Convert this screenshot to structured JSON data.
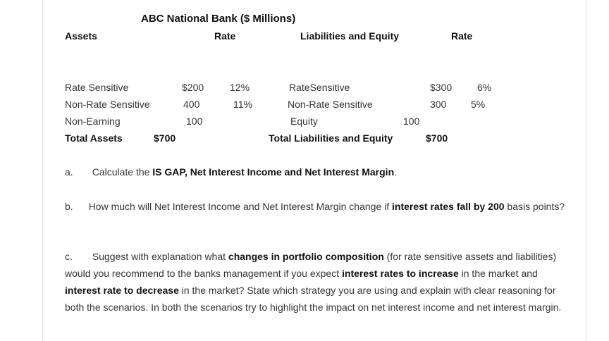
{
  "table": {
    "title": "ABC National Bank ($ Millions)",
    "headers": {
      "assets": "Assets",
      "rate_assets": "Rate",
      "liabilities": "Liabilities and Equity",
      "rate_liabilities": "Rate"
    },
    "assets": [
      {
        "label": "Rate Sensitive",
        "amount": "$200",
        "rate": "12%"
      },
      {
        "label": "Non-Rate Sensitive",
        "amount": "400",
        "rate": "11%"
      },
      {
        "label": "Non-Earning",
        "amount": "100",
        "rate": ""
      }
    ],
    "assets_total": {
      "label": "Total Assets",
      "amount": "$700"
    },
    "liabilities": [
      {
        "label": "RateSensitive",
        "amount": "$300",
        "rate": "6%"
      },
      {
        "label": "Non-Rate Sensitive",
        "amount": "300",
        "rate": "5%"
      },
      {
        "label": "Equity",
        "amount": "100",
        "rate": ""
      }
    ],
    "liabilities_total": {
      "label": "Total Liabilities and Equity",
      "amount": "$700"
    }
  },
  "questions": {
    "a": {
      "marker": "a.",
      "t1": "Calculate the ",
      "b1": "IS GAP, Net Interest Income and Net Interest Margin",
      "t2": "."
    },
    "b": {
      "marker": "b.",
      "t1": "How much will Net Interest Income and Net Interest Margin change if ",
      "b1": "interest rates fall by 200",
      "t2": " basis points?"
    },
    "c": {
      "marker": "c.",
      "t1": "Suggest with explanation what ",
      "b1": "changes in portfolio composition",
      "t2": " (for rate sensitive assets and liabilities) would you recommend to the banks management if you expect ",
      "b2": "interest rates to increase",
      "t3": " in the market and ",
      "b3": "interest rate to decrease",
      "t4": " in the market? State which strategy you are using and explain with clear reasoning for both the scenarios. In both the scenarios try to highlight the impact on net interest income and net interest margin."
    }
  }
}
